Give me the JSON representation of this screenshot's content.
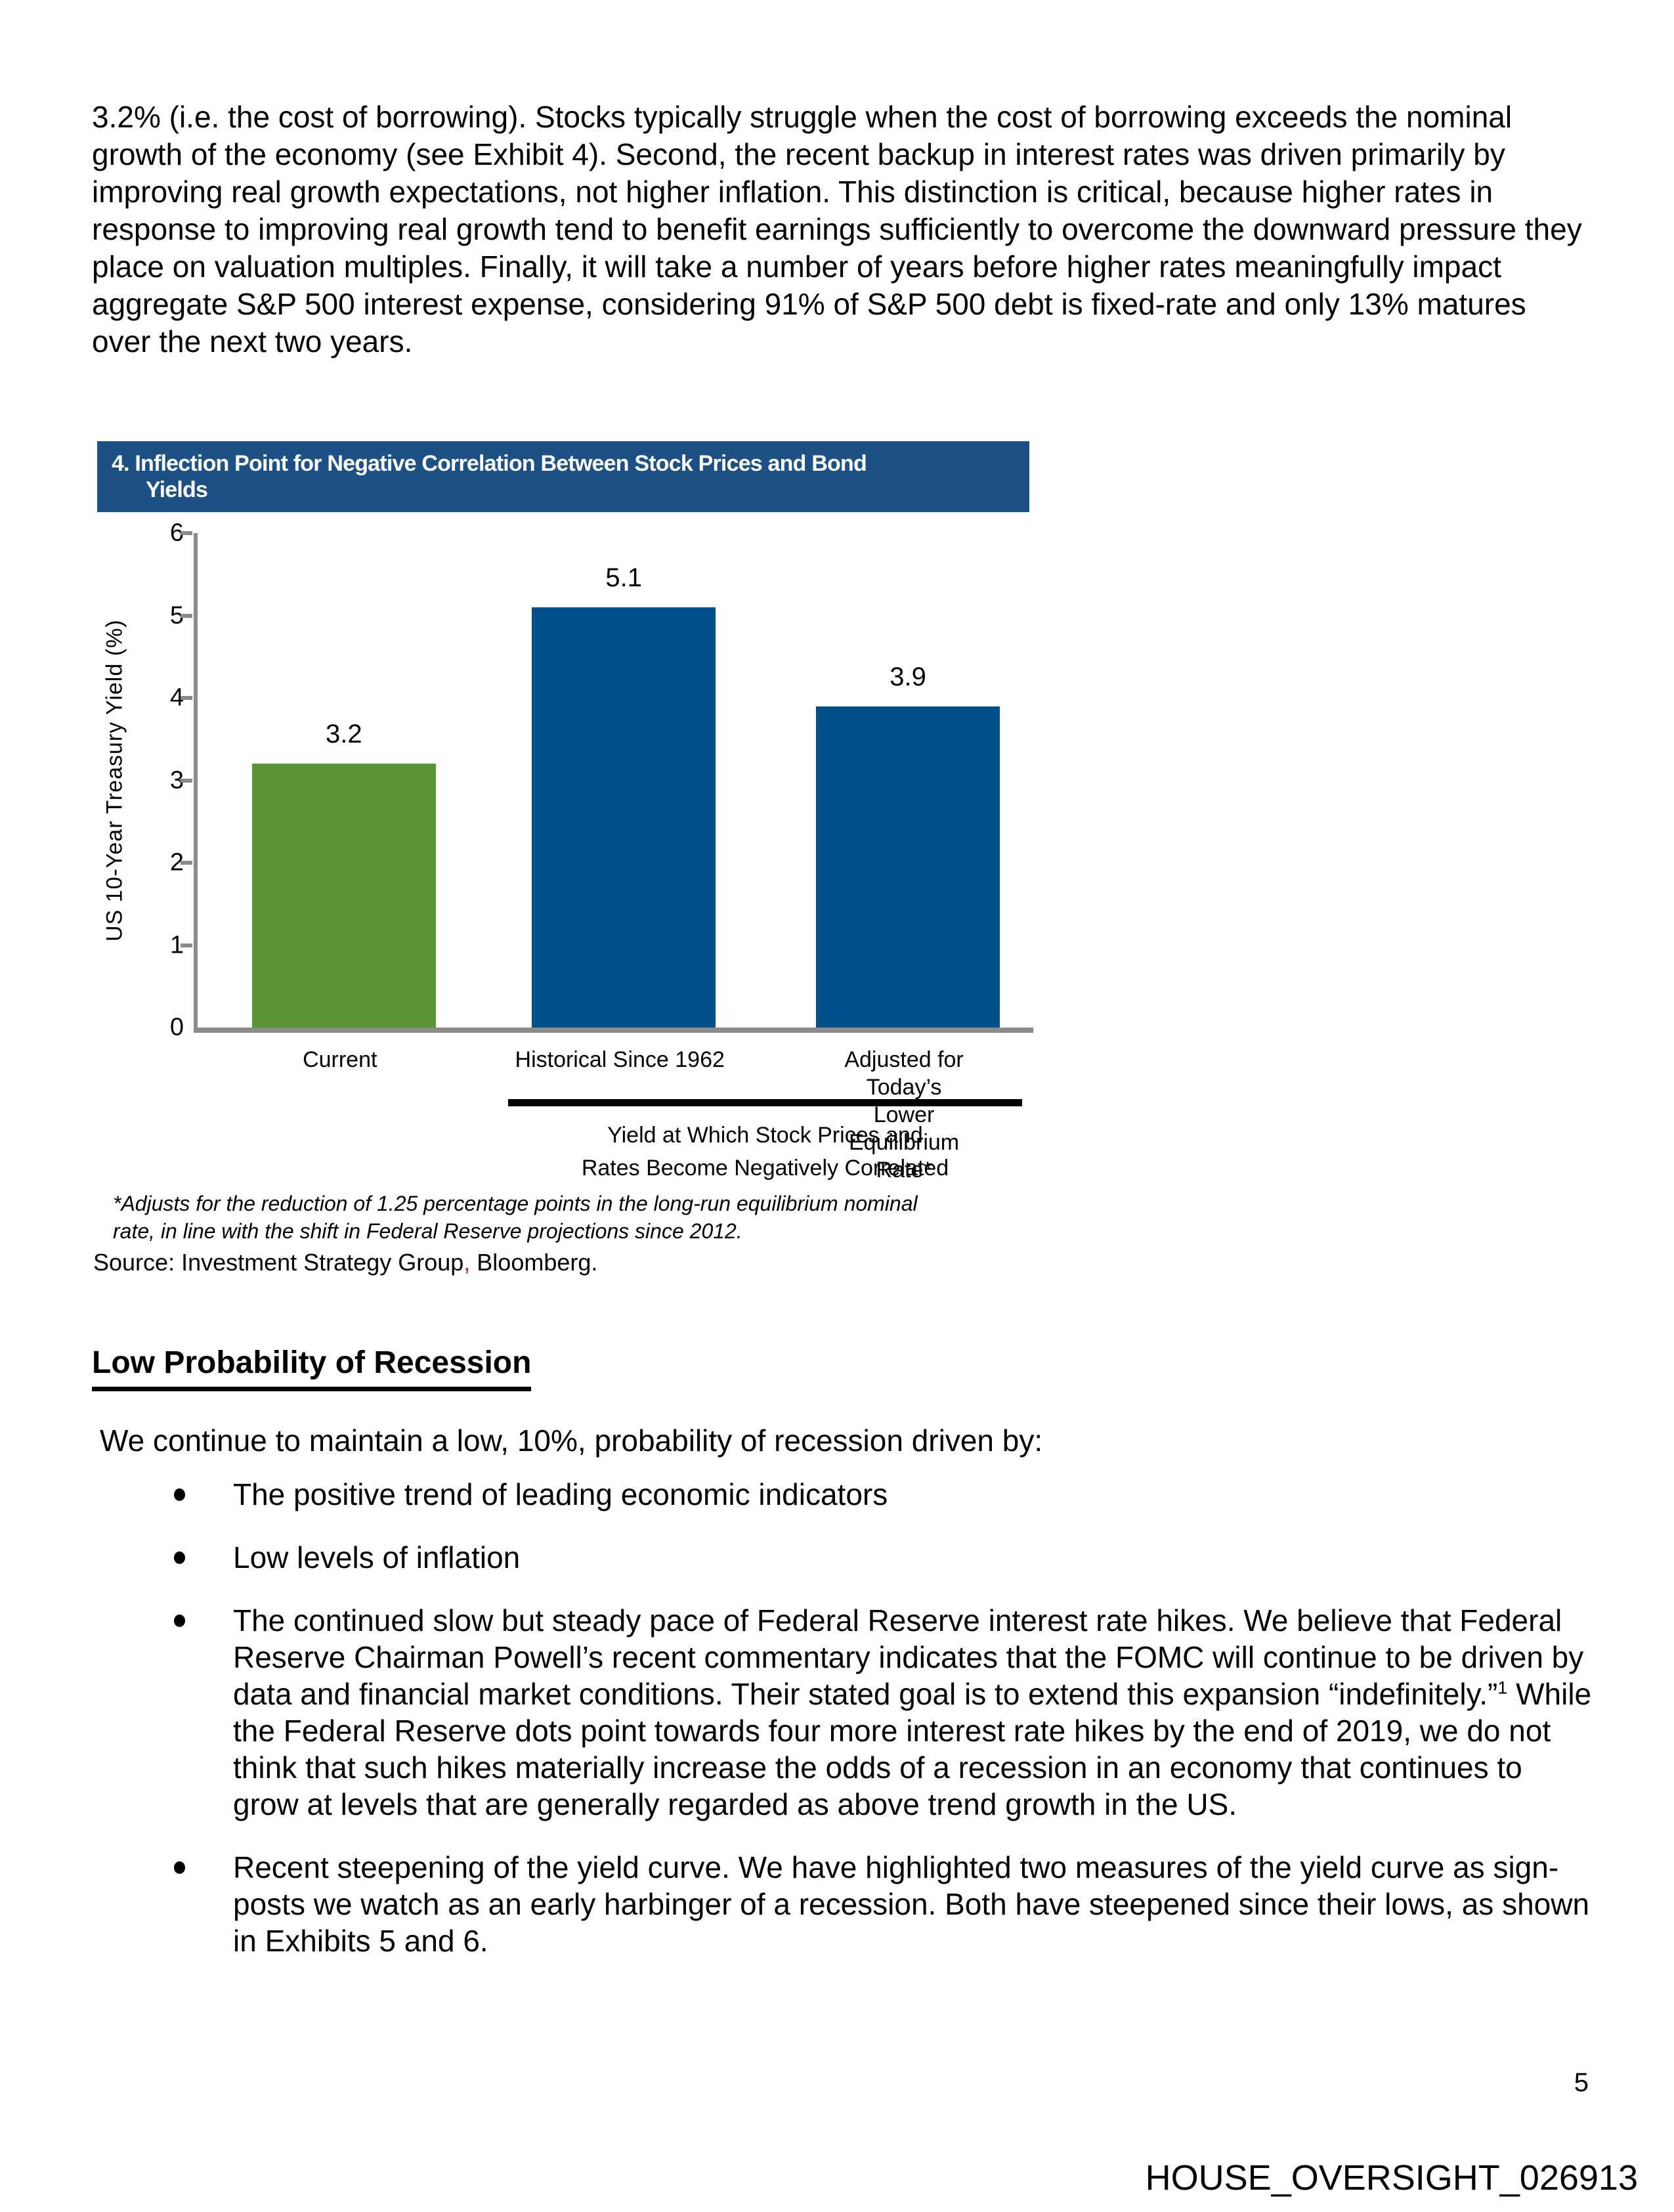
{
  "intro_paragraph": "3.2% (i.e. the cost of borrowing). Stocks typically struggle when the cost of borrowing exceeds the nominal growth of the economy (see Exhibit 4). Second, the recent backup in interest rates was driven primarily by improving real growth expectations, not higher inflation. This distinction is critical, because higher rates in response to improving real growth tend to benefit earnings sufficiently to overcome the downward pressure they place on valuation multiples. Finally, it will take a number of years before higher rates meaningfully impact aggregate S&P 500 interest expense, considering 91% of S&P 500 debt is fixed-rate and only 13% matures over the next two years.",
  "exhibit": {
    "title_line1": "4. Inflection Point for Negative Correlation Between Stock Prices and Bond",
    "title_line2": "Yields",
    "header_bg": "#1d5185",
    "footnote": "*Adjusts for the reduction of 1.25 percentage points in the long-run equilibrium nominal\nrate, in line with the shift in Federal Reserve projections since 2012."
  },
  "chart_data": {
    "type": "bar",
    "title": "4. Inflection Point for Negative Correlation Between Stock Prices and Bond Yields",
    "ylabel": "US 10-Year Treasury Yield (%)",
    "xlabel": "",
    "ylim": [
      0,
      6
    ],
    "yticks": [
      0,
      1,
      2,
      3,
      4,
      5,
      6
    ],
    "categories": [
      "Current",
      "Historical Since 1962",
      "Adjusted for Today’s\nLower Equilibrium Rate*"
    ],
    "values": [
      3.2,
      5.1,
      3.9
    ],
    "data_labels": [
      "3.2",
      "5.1",
      "3.9"
    ],
    "bar_colors": [
      "#5b9434",
      "#00518a",
      "#00518a"
    ],
    "axis_color": "#8a8a8a",
    "grid": false,
    "legend": false,
    "bracket_label": "Yield at Which Stock Prices and\nRates Become Negatively Correlated",
    "bracket_spans_categories": [
      "Historical Since 1962",
      "Adjusted for Today’s Lower Equilibrium Rate*"
    ]
  },
  "source": {
    "prefix": "Source: Investment Strategy Group",
    "comma": ",",
    "comma_color": "#b23230",
    "suffix": " Bloomberg."
  },
  "section": {
    "heading": "Low Probability of Recession",
    "intro": "We continue to maintain a low, 10%, probability of recession driven by:",
    "bullets": [
      {
        "text": "The positive trend of leading economic indicators"
      },
      {
        "text": "Low levels of inflation"
      },
      {
        "pre": "The continued slow but steady pace of Federal Reserve interest rate hikes. We believe that Federal Reserve Chairman Powell’s recent commentary indicates that the FOMC will continue to be driven by data and financial market conditions. Their stated goal is to extend this expansion “indefinitely.”",
        "sup": "1",
        "post": " While the Federal Reserve dots point towards four more interest rate hikes by the end of 2019, we do not think that such hikes materially increase the odds of a recession in an economy that continues to grow at levels that are generally regarded as above trend growth in the US."
      },
      {
        "text": "Recent steepening of the yield curve. We have highlighted two measures of the yield curve as sign-posts we watch as an early harbinger of a recession. Both have steepened since their lows, as shown in Exhibits 5 and 6."
      }
    ]
  },
  "footer": {
    "page_number": "5",
    "bates": "HOUSE_OVERSIGHT_026913"
  }
}
